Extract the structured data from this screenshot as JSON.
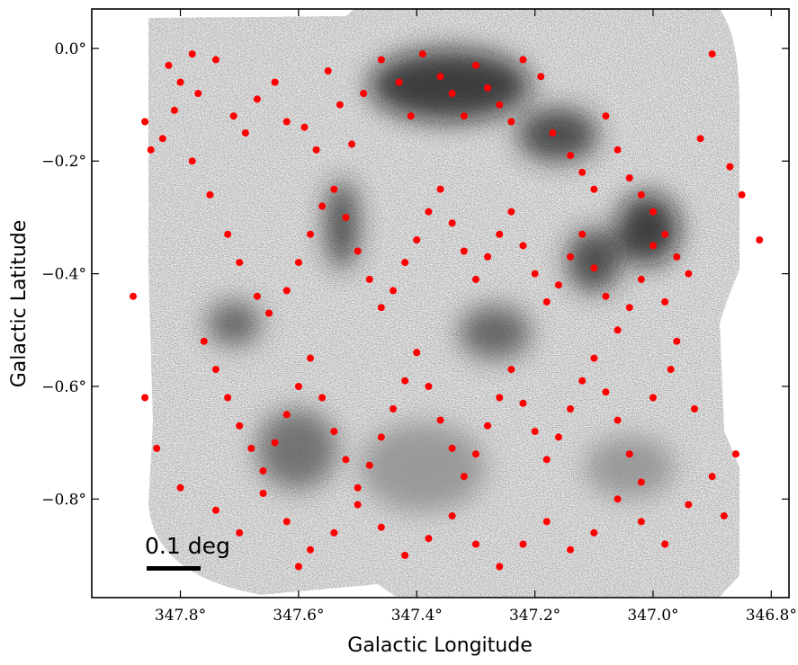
{
  "chart_data": {
    "type": "scatter",
    "title": "",
    "xlabel": "Galactic Longitude",
    "ylabel": "Galactic Latitude",
    "xlim": [
      347.95,
      346.77
    ],
    "ylim": [
      -0.975,
      0.07
    ],
    "x_ticks": [
      {
        "value": 347.8,
        "label": "347.8°"
      },
      {
        "value": 347.6,
        "label": "347.6°"
      },
      {
        "value": 347.4,
        "label": "347.4°"
      },
      {
        "value": 347.2,
        "label": "347.2°"
      },
      {
        "value": 347.0,
        "label": "347.0°"
      },
      {
        "value": 346.8,
        "label": "346.8°"
      }
    ],
    "y_ticks": [
      {
        "value": 0.0,
        "label": "0.0°"
      },
      {
        "value": -0.2,
        "label": "−0.2°"
      },
      {
        "value": -0.4,
        "label": "−0.4°"
      },
      {
        "value": -0.6,
        "label": "−0.6°"
      },
      {
        "value": -0.8,
        "label": "−0.8°"
      }
    ],
    "background": "greyscale emission image",
    "marker_color": "#ff0000",
    "scalebar": {
      "label": "0.1 deg",
      "length_deg": 0.1
    },
    "points": [
      [
        347.86,
        -0.13
      ],
      [
        347.85,
        -0.18
      ],
      [
        347.83,
        -0.16
      ],
      [
        347.81,
        -0.11
      ],
      [
        347.8,
        -0.06
      ],
      [
        347.82,
        -0.03
      ],
      [
        347.78,
        -0.01
      ],
      [
        347.74,
        -0.02
      ],
      [
        347.77,
        -0.08
      ],
      [
        347.71,
        -0.12
      ],
      [
        347.69,
        -0.15
      ],
      [
        347.67,
        -0.09
      ],
      [
        347.64,
        -0.06
      ],
      [
        347.62,
        -0.13
      ],
      [
        347.59,
        -0.14
      ],
      [
        347.57,
        -0.18
      ],
      [
        347.55,
        -0.04
      ],
      [
        347.53,
        -0.1
      ],
      [
        347.51,
        -0.17
      ],
      [
        347.49,
        -0.08
      ],
      [
        347.46,
        -0.02
      ],
      [
        347.43,
        -0.06
      ],
      [
        347.41,
        -0.12
      ],
      [
        347.39,
        -0.01
      ],
      [
        347.36,
        -0.05
      ],
      [
        347.34,
        -0.08
      ],
      [
        347.32,
        -0.12
      ],
      [
        347.3,
        -0.03
      ],
      [
        347.28,
        -0.07
      ],
      [
        347.26,
        -0.1
      ],
      [
        347.24,
        -0.13
      ],
      [
        347.22,
        -0.02
      ],
      [
        347.19,
        -0.05
      ],
      [
        347.17,
        -0.15
      ],
      [
        347.14,
        -0.19
      ],
      [
        347.12,
        -0.22
      ],
      [
        347.1,
        -0.25
      ],
      [
        347.08,
        -0.12
      ],
      [
        347.06,
        -0.18
      ],
      [
        347.04,
        -0.23
      ],
      [
        347.02,
        -0.26
      ],
      [
        347.0,
        -0.29
      ],
      [
        346.98,
        -0.33
      ],
      [
        346.96,
        -0.37
      ],
      [
        346.94,
        -0.4
      ],
      [
        346.92,
        -0.16
      ],
      [
        346.9,
        -0.01
      ],
      [
        346.87,
        -0.21
      ],
      [
        346.85,
        -0.26
      ],
      [
        346.82,
        -0.34
      ],
      [
        347.78,
        -0.2
      ],
      [
        347.75,
        -0.26
      ],
      [
        347.72,
        -0.33
      ],
      [
        347.7,
        -0.38
      ],
      [
        347.67,
        -0.44
      ],
      [
        347.65,
        -0.47
      ],
      [
        347.62,
        -0.43
      ],
      [
        347.6,
        -0.38
      ],
      [
        347.58,
        -0.33
      ],
      [
        347.56,
        -0.28
      ],
      [
        347.54,
        -0.25
      ],
      [
        347.52,
        -0.3
      ],
      [
        347.5,
        -0.36
      ],
      [
        347.48,
        -0.41
      ],
      [
        347.46,
        -0.46
      ],
      [
        347.44,
        -0.43
      ],
      [
        347.42,
        -0.38
      ],
      [
        347.4,
        -0.34
      ],
      [
        347.38,
        -0.29
      ],
      [
        347.36,
        -0.25
      ],
      [
        347.34,
        -0.31
      ],
      [
        347.32,
        -0.36
      ],
      [
        347.3,
        -0.41
      ],
      [
        347.28,
        -0.37
      ],
      [
        347.26,
        -0.33
      ],
      [
        347.24,
        -0.29
      ],
      [
        347.22,
        -0.35
      ],
      [
        347.2,
        -0.4
      ],
      [
        347.18,
        -0.45
      ],
      [
        347.16,
        -0.42
      ],
      [
        347.14,
        -0.37
      ],
      [
        347.12,
        -0.33
      ],
      [
        347.1,
        -0.39
      ],
      [
        347.08,
        -0.44
      ],
      [
        347.06,
        -0.5
      ],
      [
        347.04,
        -0.46
      ],
      [
        347.02,
        -0.41
      ],
      [
        347.0,
        -0.35
      ],
      [
        346.98,
        -0.45
      ],
      [
        346.96,
        -0.52
      ],
      [
        347.76,
        -0.52
      ],
      [
        347.74,
        -0.57
      ],
      [
        347.72,
        -0.62
      ],
      [
        347.7,
        -0.67
      ],
      [
        347.68,
        -0.71
      ],
      [
        347.66,
        -0.75
      ],
      [
        347.64,
        -0.7
      ],
      [
        347.62,
        -0.65
      ],
      [
        347.6,
        -0.6
      ],
      [
        347.58,
        -0.55
      ],
      [
        347.56,
        -0.62
      ],
      [
        347.54,
        -0.68
      ],
      [
        347.52,
        -0.73
      ],
      [
        347.5,
        -0.78
      ],
      [
        347.48,
        -0.74
      ],
      [
        347.46,
        -0.69
      ],
      [
        347.44,
        -0.64
      ],
      [
        347.42,
        -0.59
      ],
      [
        347.4,
        -0.54
      ],
      [
        347.38,
        -0.6
      ],
      [
        347.36,
        -0.66
      ],
      [
        347.34,
        -0.71
      ],
      [
        347.32,
        -0.76
      ],
      [
        347.3,
        -0.72
      ],
      [
        347.28,
        -0.67
      ],
      [
        347.26,
        -0.62
      ],
      [
        347.24,
        -0.57
      ],
      [
        347.22,
        -0.63
      ],
      [
        347.2,
        -0.68
      ],
      [
        347.18,
        -0.73
      ],
      [
        347.16,
        -0.69
      ],
      [
        347.14,
        -0.64
      ],
      [
        347.12,
        -0.59
      ],
      [
        347.1,
        -0.55
      ],
      [
        347.08,
        -0.61
      ],
      [
        347.06,
        -0.66
      ],
      [
        347.04,
        -0.72
      ],
      [
        347.02,
        -0.77
      ],
      [
        347.0,
        -0.62
      ],
      [
        346.97,
        -0.57
      ],
      [
        347.74,
        -0.82
      ],
      [
        347.7,
        -0.86
      ],
      [
        347.66,
        -0.79
      ],
      [
        347.62,
        -0.84
      ],
      [
        347.58,
        -0.89
      ],
      [
        347.54,
        -0.86
      ],
      [
        347.5,
        -0.81
      ],
      [
        347.46,
        -0.85
      ],
      [
        347.42,
        -0.9
      ],
      [
        347.38,
        -0.87
      ],
      [
        347.34,
        -0.83
      ],
      [
        347.3,
        -0.88
      ],
      [
        347.26,
        -0.92
      ],
      [
        347.22,
        -0.88
      ],
      [
        347.18,
        -0.84
      ],
      [
        347.14,
        -0.89
      ],
      [
        347.1,
        -0.86
      ],
      [
        347.06,
        -0.8
      ],
      [
        347.02,
        -0.84
      ],
      [
        346.98,
        -0.88
      ],
      [
        346.94,
        -0.81
      ],
      [
        346.9,
        -0.76
      ],
      [
        346.88,
        -0.83
      ],
      [
        346.86,
        -0.72
      ],
      [
        346.93,
        -0.64
      ],
      [
        347.86,
        -0.62
      ],
      [
        347.88,
        -0.44
      ],
      [
        347.84,
        -0.71
      ],
      [
        347.8,
        -0.78
      ],
      [
        347.6,
        -0.92
      ]
    ]
  }
}
